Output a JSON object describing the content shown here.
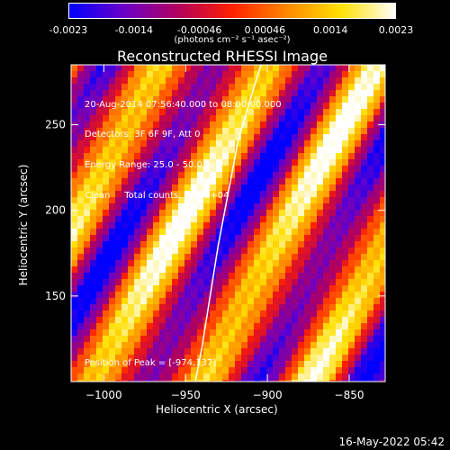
{
  "colorbar": {
    "ticks": [
      "-0.0023",
      "-0.0014",
      "-0.00046",
      "0.00046",
      "0.0014",
      "0.0023"
    ],
    "units": "(photons cm⁻² s⁻¹ asec⁻²)",
    "colors": [
      "#0000ff",
      "#6a00c8",
      "#b00060",
      "#ff2000",
      "#ff8a00",
      "#ffe000",
      "#ffffff"
    ]
  },
  "chart_data": {
    "type": "heatmap",
    "title": "Reconstructed RHESSI Image",
    "xlabel": "Heliocentric X (arcsec)",
    "ylabel": "Heliocentric Y (arcsec)",
    "xlim": [
      -1020,
      -828
    ],
    "ylim": [
      100,
      285
    ],
    "xticks": [
      -1000,
      -950,
      -900,
      -850
    ],
    "yticks": [
      150,
      200,
      250
    ],
    "xtick_labels": [
      "−1000",
      "−950",
      "−900",
      "−850"
    ],
    "ytick_labels": [
      "150",
      "200",
      "250"
    ],
    "limb": [
      [
        -904,
        285
      ],
      [
        -912,
        260
      ],
      [
        -918,
        240
      ],
      [
        -924,
        210
      ],
      [
        -930,
        180
      ],
      [
        -935,
        150
      ],
      [
        -940,
        120
      ],
      [
        -944,
        100
      ]
    ],
    "info_lines": [
      "20-Aug-2014 07:56:40.000 to 08:00:00.000",
      "Detectors: 3F 6F 9F, Att 0",
      "Energy Range: 25.0 - 50.0 keV",
      "Clean     Total counts: 1.36E+04"
    ],
    "peak_text": "Position of Peak = [-974,137]"
  },
  "footer": "16-May-2022 05:42"
}
